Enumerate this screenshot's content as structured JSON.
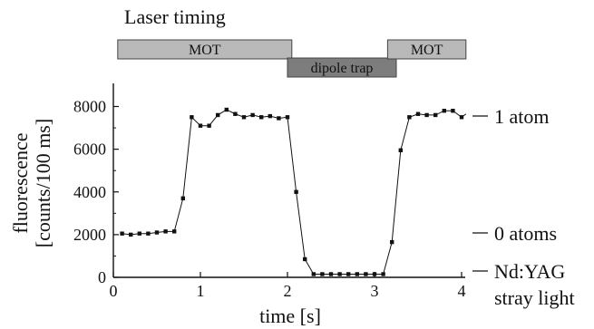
{
  "chart_data": {
    "type": "line",
    "title": "Laser timing",
    "xlabel": "time [s]",
    "ylabel": "fluorescence",
    "ylabel_unit": "[counts/100 ms]",
    "xlim": [
      0,
      4
    ],
    "ylim": [
      0,
      9000
    ],
    "xticks": [
      0,
      1,
      2,
      3,
      4
    ],
    "yticks": [
      0,
      2000,
      4000,
      6000,
      8000
    ],
    "grid": false,
    "timing_bars": [
      {
        "label": "MOT",
        "start": 0.05,
        "end": 2.05,
        "color": "#b9b9b9",
        "row": "upper"
      },
      {
        "label": "dipole trap",
        "start": 2.0,
        "end": 3.25,
        "color": "#7d7d7d",
        "row": "lower"
      },
      {
        "label": "MOT",
        "start": 3.15,
        "end": 4.05,
        "color": "#b9b9b9",
        "row": "upper"
      }
    ],
    "annotations": [
      {
        "label": "1 atom",
        "y": 7850
      },
      {
        "label": "0 atoms",
        "y": 2050
      },
      {
        "label": "Nd:YAG",
        "y": 250
      },
      {
        "label": "stray light",
        "y": 250
      }
    ],
    "series": [
      {
        "x": [
          0.1,
          0.2,
          0.3,
          0.4,
          0.5,
          0.6,
          0.7,
          0.8,
          0.9,
          1.0,
          1.1,
          1.2,
          1.3,
          1.4,
          1.5,
          1.6,
          1.7,
          1.8,
          1.9,
          2.0,
          2.1,
          2.2,
          2.3,
          2.4,
          2.5,
          2.6,
          2.7,
          2.8,
          2.9,
          3.0,
          3.1,
          3.2,
          3.3,
          3.4,
          3.5,
          3.6,
          3.7,
          3.8,
          3.9,
          4.0,
          4.05
        ],
        "values": [
          2050,
          2000,
          2050,
          2050,
          2100,
          2150,
          2150,
          3700,
          7500,
          7100,
          7100,
          7600,
          7850,
          7650,
          7500,
          7600,
          7500,
          7550,
          7450,
          7500,
          4000,
          850,
          150,
          150,
          150,
          150,
          150,
          150,
          150,
          150,
          150,
          1650,
          5950,
          7500,
          7650,
          7600,
          7600,
          7800,
          7800,
          7500,
          7650
        ]
      }
    ]
  }
}
